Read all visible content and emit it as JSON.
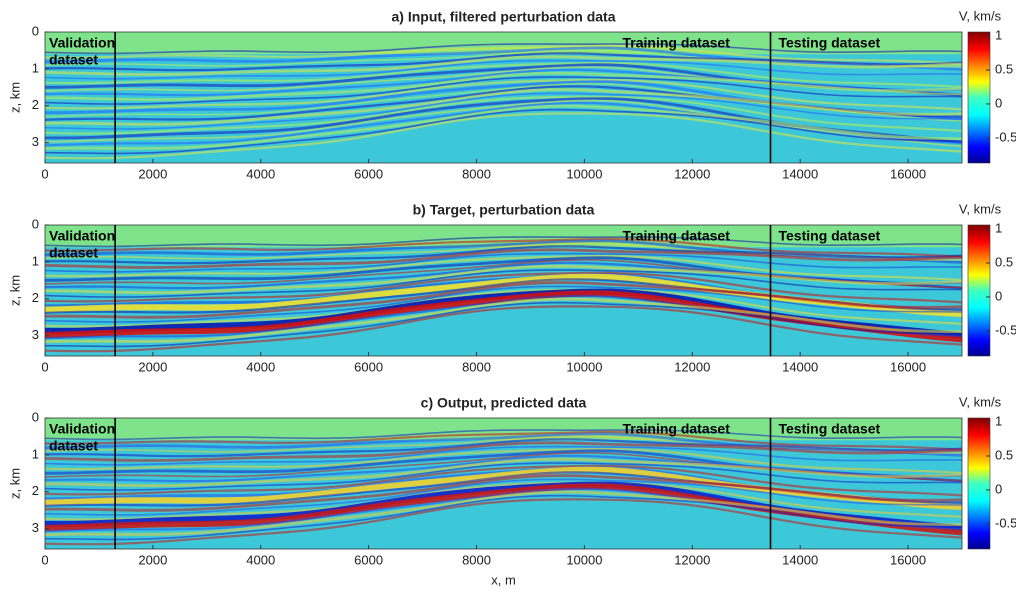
{
  "chart_data": [
    {
      "type": "image",
      "title": "a) Input, filtered perturbation data",
      "ylabel": "z, km",
      "xlim": [
        0,
        17000
      ],
      "xticks": [
        0,
        2000,
        4000,
        6000,
        8000,
        10000,
        12000,
        14000,
        16000
      ],
      "ylim": [
        0,
        3.55
      ],
      "yticks": [
        0,
        1,
        2,
        3
      ],
      "dividers": [
        1300,
        13450
      ],
      "annotations": [
        "Validation",
        "dataset",
        "Training dataset",
        "Testing dataset"
      ],
      "colorbar": {
        "label": "V, km/s",
        "lim": [
          -0.87,
          1.06
        ],
        "ticks": [
          1,
          0.5,
          0,
          -0.5
        ]
      }
    },
    {
      "type": "image",
      "title": "b) Target, perturbation data",
      "ylabel": "z, km",
      "xlim": [
        0,
        17000
      ],
      "xticks": [
        0,
        2000,
        4000,
        6000,
        8000,
        10000,
        12000,
        14000,
        16000
      ],
      "ylim": [
        0,
        3.55
      ],
      "yticks": [
        0,
        1,
        2,
        3
      ],
      "dividers": [
        1300,
        13450
      ],
      "annotations": [
        "Validation",
        "dataset",
        "Training dataset",
        "Testing dataset"
      ],
      "colorbar": {
        "label": "V, km/s",
        "lim": [
          -0.87,
          1.06
        ],
        "ticks": [
          1,
          0.5,
          0,
          -0.5
        ]
      }
    },
    {
      "type": "image",
      "title": "c) Output, predicted data",
      "ylabel": "z, km",
      "xlabel": "x, m",
      "xlim": [
        0,
        17000
      ],
      "xticks": [
        0,
        2000,
        4000,
        6000,
        8000,
        10000,
        12000,
        14000,
        16000
      ],
      "ylim": [
        0,
        3.55
      ],
      "yticks": [
        0,
        1,
        2,
        3
      ],
      "dividers": [
        1300,
        13450
      ],
      "annotations": [
        "Validation",
        "dataset",
        "Training dataset",
        "Testing dataset"
      ],
      "colorbar": {
        "label": "V, km/s",
        "lim": [
          -0.87,
          1.06
        ],
        "ticks": [
          1,
          0.5,
          0,
          -0.5
        ]
      }
    }
  ]
}
